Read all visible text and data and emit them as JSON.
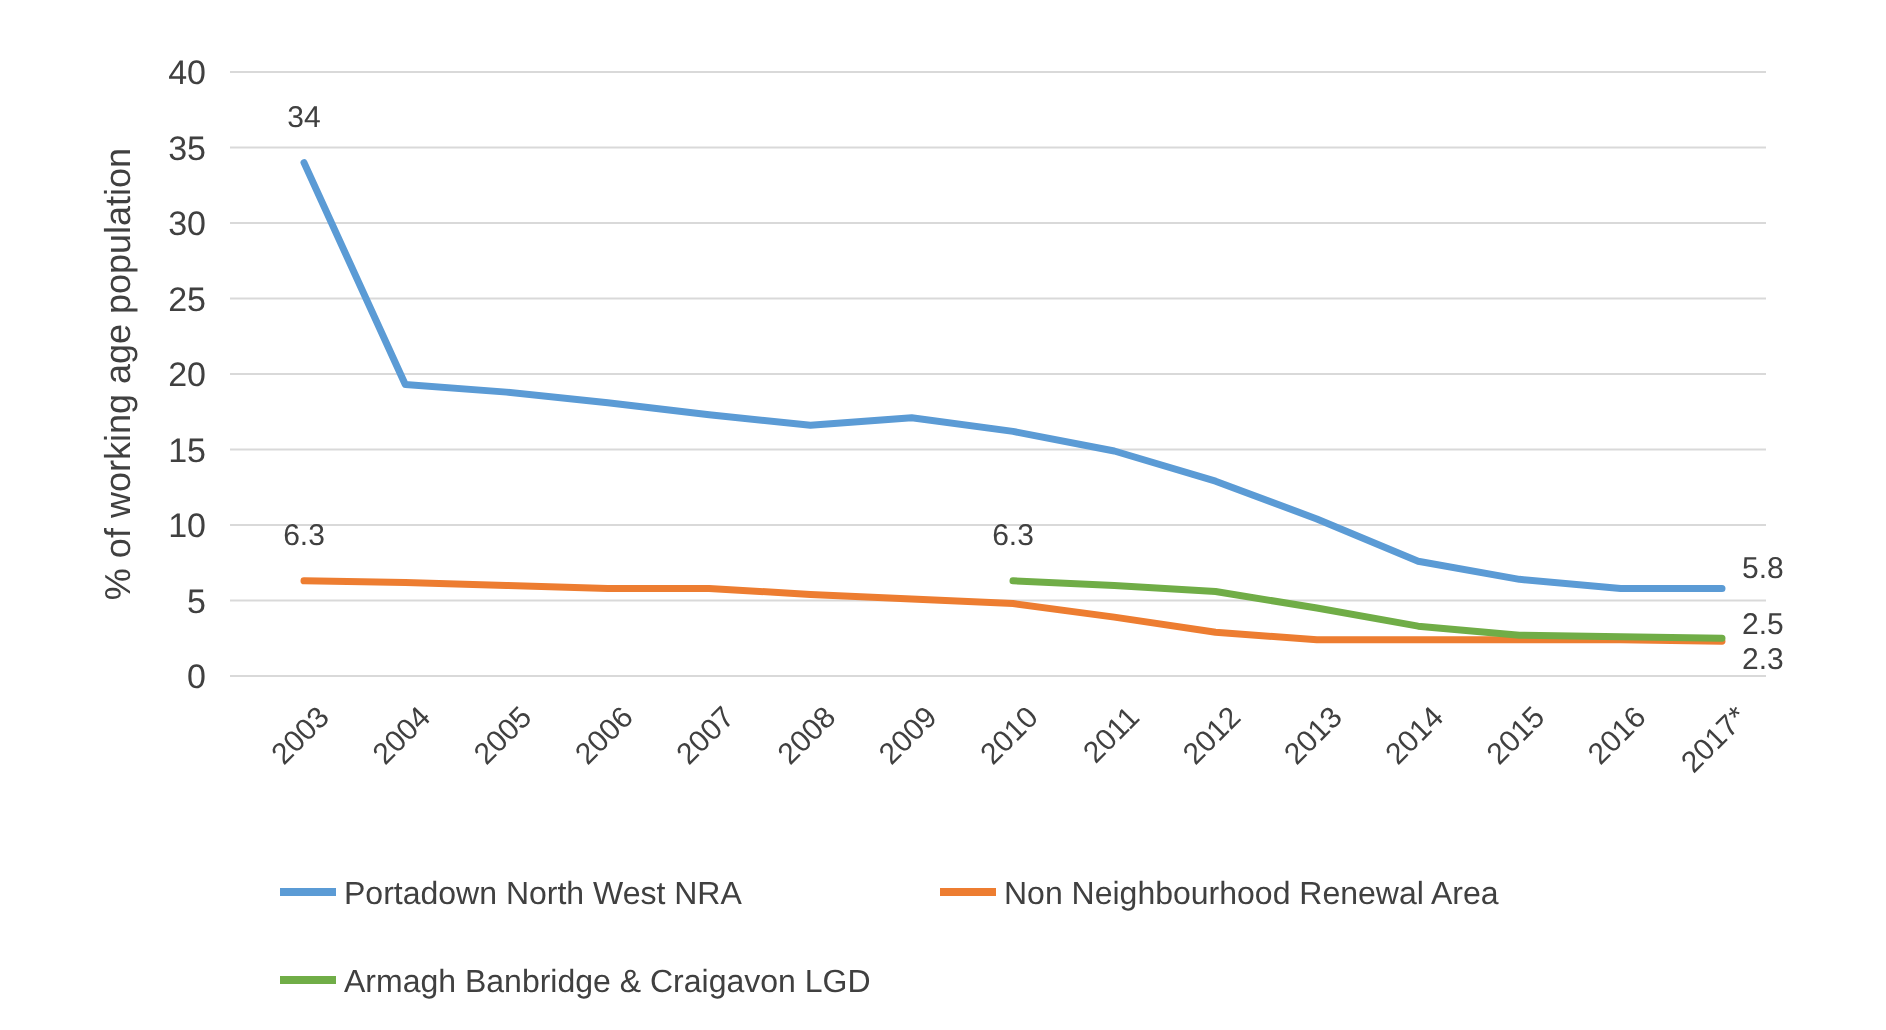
{
  "chart_data": {
    "type": "line",
    "ylabel": "% of working age population",
    "categories": [
      "2003",
      "2004",
      "2005",
      "2006",
      "2007",
      "2008",
      "2009",
      "2010",
      "2011",
      "2012",
      "2013",
      "2014",
      "2015",
      "2016",
      "2017*"
    ],
    "ylim": [
      0,
      40
    ],
    "yticks": [
      0,
      5,
      10,
      15,
      20,
      25,
      30,
      35,
      40
    ],
    "grid": "y",
    "legend": "bottom",
    "marker": "none",
    "line_style": "solid",
    "series": [
      {
        "name": "Portadown North West NRA",
        "color": "#5b9bd5",
        "values": [
          34,
          19.3,
          18.8,
          18.1,
          17.3,
          16.6,
          17.1,
          16.2,
          14.9,
          12.9,
          10.4,
          7.6,
          6.4,
          5.8,
          5.8
        ],
        "value_labels": [
          "34",
          null,
          null,
          null,
          null,
          null,
          null,
          null,
          null,
          null,
          null,
          null,
          null,
          null,
          "5.8"
        ]
      },
      {
        "name": "Non Neighbourhood Renewal Area",
        "color": "#ed7d31",
        "values": [
          6.3,
          6.2,
          6.0,
          5.8,
          5.8,
          5.4,
          5.1,
          4.8,
          3.9,
          2.9,
          2.4,
          2.4,
          2.4,
          2.4,
          2.3
        ],
        "value_labels": [
          "6.3",
          null,
          null,
          null,
          null,
          null,
          null,
          null,
          null,
          null,
          null,
          null,
          null,
          null,
          "2.3"
        ]
      },
      {
        "name": "Armagh Banbridge & Craigavon LGD",
        "color": "#70ad47",
        "values": [
          null,
          null,
          null,
          null,
          null,
          null,
          null,
          6.3,
          6.0,
          5.6,
          4.5,
          3.3,
          2.7,
          2.6,
          2.5
        ],
        "value_labels": [
          null,
          null,
          null,
          null,
          null,
          null,
          null,
          "6.3",
          null,
          null,
          null,
          null,
          null,
          null,
          "2.5"
        ]
      }
    ]
  }
}
